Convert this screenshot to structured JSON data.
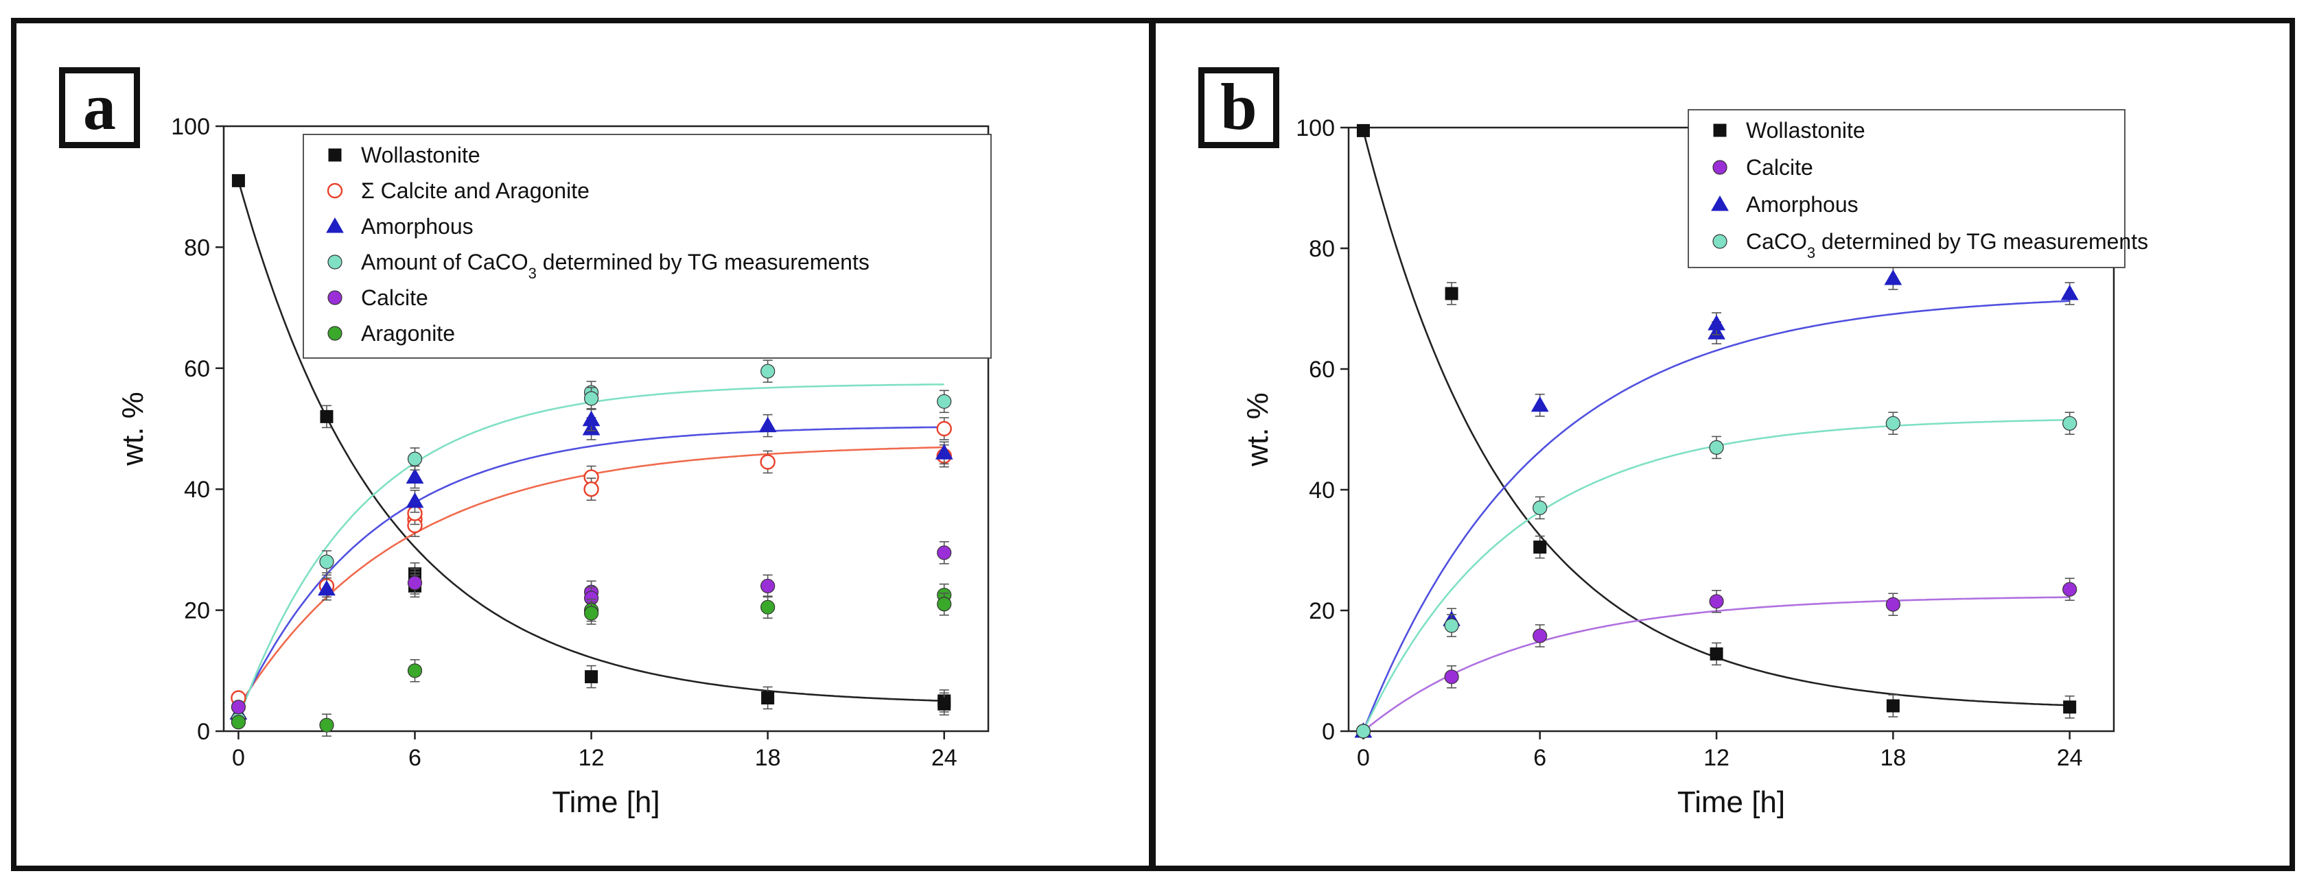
{
  "chart_data": [
    {
      "type": "scatter",
      "panel_label": "a",
      "xlabel": "Time [h]",
      "ylabel": "wt. %",
      "xlim": [
        -0.5,
        25.5
      ],
      "ylim": [
        0,
        100
      ],
      "xticks": [
        0,
        6,
        12,
        18,
        24
      ],
      "yticks": [
        0,
        20,
        40,
        60,
        80,
        100
      ],
      "legend_position": "top-right",
      "series": [
        {
          "name": "Wollastonite",
          "marker": "square",
          "color": "#111111",
          "filled": true,
          "x": [
            0,
            3,
            6,
            6,
            6,
            12,
            18,
            24,
            24
          ],
          "y": [
            91,
            52,
            26,
            25,
            24,
            9,
            5.5,
            5,
            4.5
          ],
          "fit": {
            "a": 4.3,
            "b": 86.7,
            "k": 0.2,
            "color": "#222222"
          }
        },
        {
          "name": "Σ Calcite and Aragonite",
          "marker": "circle",
          "color": "#e8402a",
          "filled": false,
          "x": [
            0,
            3,
            6,
            6,
            6,
            12,
            12,
            18,
            24,
            24
          ],
          "y": [
            5.5,
            24,
            35,
            34,
            36,
            42,
            40,
            44.5,
            50,
            45.5
          ],
          "fit": {
            "a": 47.5,
            "b": -43.5,
            "k": 0.18,
            "color": "#f06a4d"
          }
        },
        {
          "name": "Amorphous",
          "marker": "triangle",
          "color": "#1f1fc4",
          "filled": true,
          "x": [
            0,
            3,
            6,
            6,
            12,
            12,
            18,
            24
          ],
          "y": [
            3,
            23.5,
            38,
            42,
            50,
            51.5,
            50.5,
            46
          ],
          "fit": {
            "a": 50.5,
            "b": -47.5,
            "k": 0.22,
            "color": "#5050e0"
          }
        },
        {
          "name": "Amount of CaCO3 determined by TG measurements",
          "marker": "circle",
          "color": "#7fe0c4",
          "filled": true,
          "x": [
            0,
            3,
            6,
            12,
            12,
            18,
            24
          ],
          "y": [
            2,
            28,
            45,
            56,
            55,
            59.5,
            54.5
          ],
          "fit": {
            "a": 57.5,
            "b": -55.5,
            "k": 0.24,
            "color": "#7fe0c4"
          }
        },
        {
          "name": "Calcite",
          "marker": "circle",
          "color": "#9a2fd8",
          "filled": true,
          "x": [
            0,
            6,
            12,
            12,
            18,
            24
          ],
          "y": [
            4,
            24.5,
            23,
            22,
            24,
            29.5
          ]
        },
        {
          "name": "Aragonite",
          "marker": "circle",
          "color": "#3aa82a",
          "filled": true,
          "x": [
            0,
            3,
            6,
            12,
            12,
            18,
            24,
            24
          ],
          "y": [
            1.5,
            1,
            10,
            20,
            19.5,
            20.5,
            22.5,
            21
          ]
        }
      ]
    },
    {
      "type": "scatter",
      "panel_label": "b",
      "xlabel": "Time [h]",
      "ylabel": "wt. %",
      "xlim": [
        -0.5,
        25.5
      ],
      "ylim": [
        0,
        100
      ],
      "xticks": [
        0,
        6,
        12,
        18,
        24
      ],
      "yticks": [
        0,
        20,
        40,
        60,
        80,
        100
      ],
      "legend_position": "top-right",
      "series": [
        {
          "name": "Wollastonite",
          "marker": "square",
          "color": "#111111",
          "filled": true,
          "x": [
            0,
            3,
            6,
            12,
            18,
            24
          ],
          "y": [
            99.5,
            72.5,
            30.5,
            12.8,
            4.2,
            4
          ],
          "fit": {
            "a": 3.5,
            "b": 96,
            "k": 0.2,
            "color": "#222222"
          }
        },
        {
          "name": "Calcite",
          "marker": "circle",
          "color": "#9a2fd8",
          "filled": true,
          "x": [
            0,
            3,
            6,
            12,
            18,
            24
          ],
          "y": [
            0,
            9,
            15.8,
            21.5,
            21,
            23.5
          ],
          "fit": {
            "a": 22.5,
            "b": -22.5,
            "k": 0.18,
            "color": "#b070e0"
          }
        },
        {
          "name": "Amorphous",
          "marker": "triangle",
          "color": "#1f1fc4",
          "filled": true,
          "x": [
            0,
            3,
            6,
            12,
            12,
            18,
            24
          ],
          "y": [
            0,
            18.5,
            54,
            66,
            67.5,
            75,
            72.5
          ],
          "fit": {
            "a": 72.5,
            "b": -72.5,
            "k": 0.17,
            "color": "#5050e0"
          }
        },
        {
          "name": "CaCO3 determined by TG measurements",
          "marker": "circle",
          "color": "#7fe0c4",
          "filled": true,
          "x": [
            0,
            3,
            6,
            12,
            18,
            24
          ],
          "y": [
            0,
            17.5,
            37,
            47,
            51,
            51
          ],
          "fit": {
            "a": 52,
            "b": -52,
            "k": 0.2,
            "color": "#7fe0c4"
          }
        }
      ]
    }
  ]
}
